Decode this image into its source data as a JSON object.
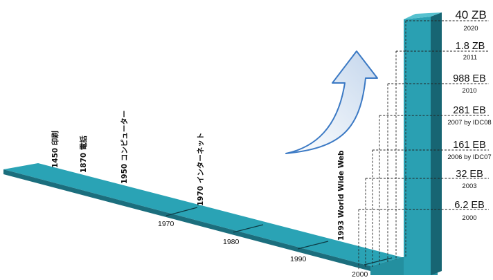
{
  "events": [
    {
      "id": "printing",
      "label": "1450 印刷"
    },
    {
      "id": "telephone",
      "label": "1870 電話"
    },
    {
      "id": "computer",
      "label": "1950 コンピューター"
    },
    {
      "id": "internet",
      "label": "1970 インターネット"
    },
    {
      "id": "www",
      "label": "1993 World Wide Web"
    }
  ],
  "timeline_ticks": [
    "1970",
    "1980",
    "1990",
    "2000"
  ],
  "data_volumes": [
    {
      "value": "40 ZB",
      "year": "2020"
    },
    {
      "value": "1.8 ZB",
      "year": "2011"
    },
    {
      "value": "988 EB",
      "year": "2010"
    },
    {
      "value": "281 EB",
      "year": "2007 by IDC08"
    },
    {
      "value": "161 EB",
      "year": "2006 by IDC07"
    },
    {
      "value": "32 EB",
      "year": "2003"
    },
    {
      "value": "6.2 EB",
      "year": "2000"
    }
  ],
  "colors": {
    "band_top": "#2aa3b5",
    "band_front": "#1b6e7d",
    "pillar_front": "#2aa0b2",
    "pillar_side": "#176573",
    "arrow_fill": "#e4edf7",
    "arrow_stroke": "#3b79c4"
  }
}
